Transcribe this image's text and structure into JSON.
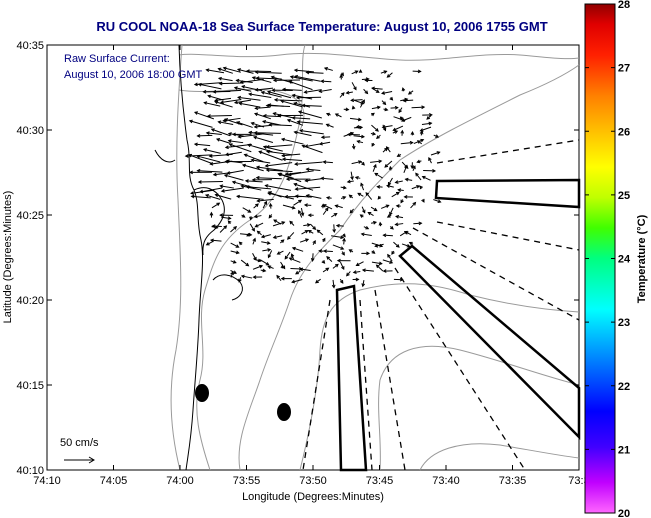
{
  "chart_data": {
    "type": "map",
    "title": "RU COOL  NOAA-18  Sea Surface Temperature:  August 10, 2006 1755 GMT",
    "xlabel": "Longitude (Degrees:Minutes)",
    "ylabel": "Latitude (Degrees:Minutes)",
    "x_ticks": [
      "74:10",
      "74:05",
      "74:00",
      "73:55",
      "73:50",
      "73:45",
      "73:40",
      "73:35",
      "73:3"
    ],
    "y_ticks": [
      "40:35",
      "40:30",
      "40:25",
      "40:20",
      "40:15",
      "40:10"
    ],
    "xlim_minutes_west": [
      10,
      30
    ],
    "ylim_minutes_north": [
      10,
      35
    ],
    "annotation_lines": [
      "Raw Surface Current:",
      "August 10, 2006 18:00 GMT"
    ],
    "scale_label": "50 cm/s",
    "colorbar": {
      "label": "Temperature (°C)",
      "ticks": [
        "28",
        "27",
        "26",
        "25",
        "24",
        "23",
        "22",
        "21",
        "20"
      ],
      "range": [
        20,
        28
      ],
      "colors": [
        "#ff00ff",
        "#0000ff",
        "#00ffff",
        "#00ff00",
        "#ffff00",
        "#ff8000",
        "#ff0000",
        "#8b0000"
      ]
    }
  }
}
